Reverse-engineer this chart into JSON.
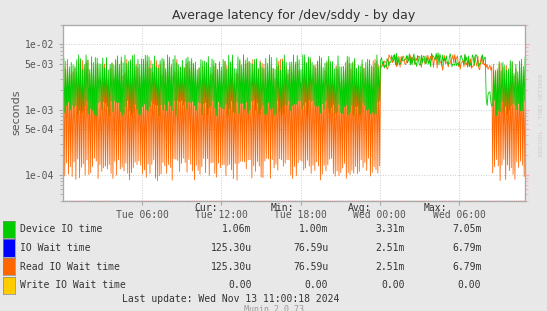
{
  "title": "Average latency for /dev/sddy - by day",
  "ylabel": "seconds",
  "watermark": "RRDTOOL / TOBI OETIKER",
  "muninver": "Munin 2.0.73",
  "last_update": "Last update: Wed Nov 13 11:00:18 2024",
  "bg_color": "#e8e8e8",
  "plot_bg_color": "#ffffff",
  "grid_color": "#cccccc",
  "grid_linestyle": "dotted",
  "border_color": "#aaaaaa",
  "pink_line_color": "#ffaaaa",
  "blue_arrow_color": "#aaaaff",
  "ylim_min": 4e-05,
  "ylim_max": 0.02,
  "xlim_min": 0,
  "xlim_max": 35,
  "xtick_pos": [
    6,
    12,
    18,
    24,
    30
  ],
  "xtick_labels": [
    "Tue 06:00",
    "Tue 12:00",
    "Tue 18:00",
    "Wed 00:00",
    "Wed 06:00"
  ],
  "ytick_vals": [
    0.0001,
    0.0005,
    0.001,
    0.005,
    0.01
  ],
  "ytick_labels": [
    "1e-04",
    "5e-04",
    "1e-03",
    "5e-03",
    "1e-02"
  ],
  "legend_items": [
    {
      "label": "Device IO time",
      "color": "#00cc00",
      "cur": "1.06m",
      "min": "1.00m",
      "avg": "3.31m",
      "max": "7.05m"
    },
    {
      "label": "IO Wait time",
      "color": "#0000ff",
      "cur": "125.30u",
      "min": "76.59u",
      "avg": "2.51m",
      "max": "6.79m"
    },
    {
      "label": "Read IO Wait time",
      "color": "#ff6600",
      "cur": "125.30u",
      "min": "76.59u",
      "avg": "2.51m",
      "max": "6.79m"
    },
    {
      "label": "Write IO Wait time",
      "color": "#ffcc00",
      "cur": "0.00",
      "min": "0.00",
      "avg": "0.00",
      "max": "0.00"
    }
  ],
  "table_headers": [
    "Cur:",
    "Min:",
    "Avg:",
    "Max:"
  ],
  "tick_color": "#555555",
  "axis_color": "#aaaaaa",
  "watermark_color": "#cccccc",
  "text_color": "#333333",
  "munin_color": "#999999"
}
